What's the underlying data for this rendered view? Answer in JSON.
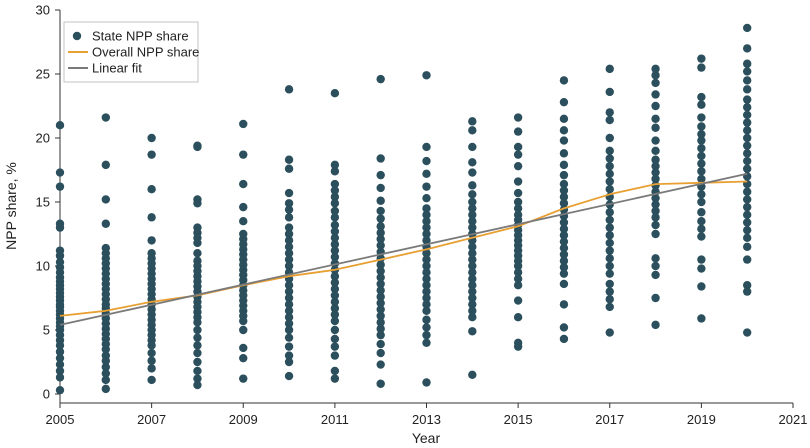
{
  "chart_data": {
    "type": "scatter",
    "title": "",
    "xlabel": "Year",
    "ylabel": "NPP share, %",
    "xlim": [
      2005,
      2021
    ],
    "ylim": [
      0,
      30
    ],
    "x_ticks": [
      2005,
      2007,
      2009,
      2011,
      2013,
      2015,
      2017,
      2019,
      2021
    ],
    "y_ticks": [
      0,
      5,
      10,
      15,
      20,
      25,
      30
    ],
    "grid": false,
    "legend_position": "top-left",
    "legend": [
      {
        "label": "State NPP share",
        "kind": "point",
        "color": "#2b4f5c"
      },
      {
        "label": "Overall NPP share",
        "kind": "line",
        "color": "#e8a033"
      },
      {
        "label": "Linear fit",
        "kind": "line",
        "color": "#7a7a7a"
      }
    ],
    "series": [
      {
        "name": "State NPP share",
        "kind": "scatter",
        "color": "#2b4f5c",
        "points": [
          {
            "x": 2005,
            "values": [
              21.0,
              17.3,
              16.2,
              13.3,
              13.0,
              11.2,
              10.8,
              10.3,
              9.9,
              9.5,
              9.1,
              8.8,
              8.5,
              8.2,
              7.9,
              7.6,
              7.3,
              7.0,
              6.8,
              6.5,
              6.2,
              5.9,
              5.6,
              5.3,
              5.0,
              4.6,
              4.2,
              3.8,
              3.3,
              2.8,
              2.3,
              1.8,
              1.3,
              0.3
            ]
          },
          {
            "x": 2006,
            "values": [
              21.6,
              17.9,
              15.2,
              13.3,
              11.4,
              11.0,
              10.6,
              10.2,
              9.8,
              9.4,
              9.0,
              8.6,
              8.2,
              7.8,
              7.4,
              7.0,
              6.7,
              6.3,
              5.9,
              5.5,
              5.1,
              4.7,
              4.3,
              3.9,
              3.5,
              3.0,
              2.6,
              2.1,
              1.6,
              1.1,
              0.4
            ]
          },
          {
            "x": 2007,
            "values": [
              20.0,
              18.7,
              16.0,
              13.8,
              12.0,
              11.0,
              10.6,
              10.2,
              9.8,
              9.4,
              9.0,
              8.6,
              8.2,
              7.8,
              7.4,
              7.0,
              6.6,
              6.2,
              5.8,
              5.4,
              5.0,
              4.6,
              4.2,
              3.8,
              3.2,
              2.6,
              2.0,
              1.1
            ]
          },
          {
            "x": 2008,
            "values": [
              19.4,
              19.3,
              15.2,
              14.9,
              13.0,
              12.6,
              12.2,
              11.8,
              11.0,
              10.4,
              10.0,
              9.6,
              9.2,
              8.8,
              8.4,
              8.0,
              7.6,
              7.2,
              6.8,
              6.4,
              6.0,
              5.6,
              5.0,
              4.4,
              3.8,
              3.2,
              2.5,
              1.8,
              1.2,
              0.7
            ]
          },
          {
            "x": 2009,
            "values": [
              21.1,
              18.7,
              16.4,
              14.6,
              13.5,
              12.5,
              12.1,
              11.7,
              11.3,
              10.9,
              10.5,
              10.1,
              9.7,
              9.3,
              8.9,
              8.5,
              8.1,
              7.7,
              7.3,
              6.9,
              6.5,
              6.1,
              5.7,
              5.0,
              3.6,
              2.8,
              1.2
            ]
          },
          {
            "x": 2010,
            "values": [
              23.8,
              18.3,
              17.6,
              15.7,
              14.9,
              14.4,
              13.8,
              13.0,
              12.5,
              12.0,
              11.5,
              11.0,
              10.5,
              10.0,
              9.5,
              9.0,
              8.5,
              8.0,
              7.5,
              7.0,
              6.5,
              6.0,
              5.5,
              5.0,
              4.4,
              3.7,
              3.0,
              2.5,
              1.4
            ]
          },
          {
            "x": 2011,
            "values": [
              23.5,
              17.9,
              17.4,
              16.4,
              15.9,
              15.4,
              14.9,
              14.3,
              13.8,
              13.2,
              12.7,
              12.2,
              11.7,
              11.2,
              10.7,
              10.2,
              9.7,
              9.2,
              8.7,
              8.2,
              7.7,
              7.2,
              6.7,
              6.2,
              5.7,
              5.0,
              4.3,
              3.7,
              3.0,
              1.8,
              1.2
            ]
          },
          {
            "x": 2012,
            "values": [
              24.6,
              18.4,
              17.1,
              16.1,
              15.1,
              14.3,
              13.7,
              13.1,
              12.6,
              12.1,
              11.6,
              11.1,
              10.6,
              10.1,
              9.6,
              9.1,
              8.6,
              8.1,
              7.6,
              7.1,
              6.6,
              6.1,
              5.6,
              5.1,
              4.6,
              3.9,
              3.2,
              2.3,
              0.8
            ]
          },
          {
            "x": 2013,
            "values": [
              24.9,
              19.3,
              18.2,
              17.2,
              16.2,
              15.3,
              14.5,
              14.0,
              13.5,
              13.0,
              12.5,
              12.0,
              11.5,
              11.0,
              10.5,
              10.0,
              9.5,
              9.0,
              8.5,
              8.0,
              7.5,
              7.0,
              6.5,
              5.8,
              5.2,
              4.6,
              4.0,
              0.9
            ]
          },
          {
            "x": 2014,
            "values": [
              21.3,
              20.6,
              19.3,
              18.1,
              17.3,
              16.3,
              15.6,
              15.0,
              14.5,
              14.0,
              13.5,
              13.0,
              12.5,
              12.0,
              11.5,
              11.0,
              10.5,
              10.0,
              9.5,
              9.0,
              8.5,
              8.0,
              7.5,
              7.0,
              6.5,
              6.0,
              4.9,
              1.5
            ]
          },
          {
            "x": 2015,
            "values": [
              21.6,
              20.5,
              19.3,
              18.7,
              17.8,
              16.6,
              15.7,
              15.0,
              14.5,
              14.0,
              13.6,
              13.2,
              12.8,
              12.4,
              12.0,
              11.6,
              11.2,
              10.8,
              10.4,
              10.0,
              9.5,
              9.0,
              8.5,
              7.3,
              6.0,
              4.0,
              3.7
            ]
          },
          {
            "x": 2016,
            "values": [
              24.5,
              22.8,
              21.5,
              20.6,
              19.8,
              18.8,
              17.9,
              17.1,
              16.4,
              15.9,
              15.4,
              14.9,
              14.4,
              13.9,
              13.4,
              12.9,
              12.4,
              11.9,
              11.4,
              10.9,
              10.4,
              9.9,
              9.4,
              8.6,
              7.0,
              5.2,
              4.3
            ]
          },
          {
            "x": 2017,
            "values": [
              25.4,
              23.6,
              22.0,
              21.4,
              20.0,
              19.0,
              18.4,
              17.8,
              17.2,
              16.6,
              16.0,
              15.4,
              14.8,
              14.2,
              13.6,
              13.0,
              12.4,
              11.8,
              11.2,
              10.6,
              10.0,
              9.4,
              8.6,
              8.0,
              7.4,
              6.8,
              4.8
            ]
          },
          {
            "x": 2018,
            "values": [
              25.4,
              24.9,
              24.3,
              23.4,
              22.5,
              21.5,
              20.8,
              19.8,
              19.0,
              18.3,
              17.8,
              17.3,
              16.8,
              16.3,
              15.8,
              15.3,
              14.8,
              14.3,
              13.8,
              13.2,
              12.5,
              10.6,
              10.0,
              9.3,
              7.5,
              5.4
            ]
          },
          {
            "x": 2019,
            "values": [
              26.2,
              25.5,
              23.2,
              22.6,
              21.6,
              20.9,
              20.3,
              19.8,
              19.2,
              18.6,
              18.0,
              17.4,
              16.8,
              16.2,
              15.6,
              15.0,
              14.2,
              13.5,
              12.9,
              12.3,
              10.5,
              9.8,
              8.4,
              5.9
            ]
          },
          {
            "x": 2020,
            "values": [
              28.6,
              27.0,
              25.8,
              25.2,
              24.5,
              23.8,
              23.0,
              22.4,
              21.8,
              21.2,
              20.6,
              20.0,
              19.4,
              18.8,
              18.2,
              17.6,
              17.0,
              16.4,
              15.8,
              15.2,
              14.6,
              14.0,
              13.4,
              12.8,
              12.2,
              11.5,
              10.5,
              8.5,
              8.0,
              4.8
            ]
          }
        ]
      },
      {
        "name": "Overall NPP share",
        "kind": "line",
        "color": "#e8a033",
        "x": [
          2005,
          2006,
          2007,
          2008,
          2009,
          2010,
          2011,
          2012,
          2013,
          2014,
          2015,
          2016,
          2017,
          2018,
          2019,
          2020
        ],
        "y": [
          6.1,
          6.5,
          7.2,
          7.7,
          8.5,
          9.2,
          9.7,
          10.5,
          11.3,
          12.2,
          13.1,
          14.5,
          15.6,
          16.4,
          16.5,
          16.6
        ]
      },
      {
        "name": "Linear fit",
        "kind": "line",
        "color": "#7a7a7a",
        "x": [
          2005,
          2020
        ],
        "y": [
          5.4,
          17.2
        ]
      }
    ]
  }
}
